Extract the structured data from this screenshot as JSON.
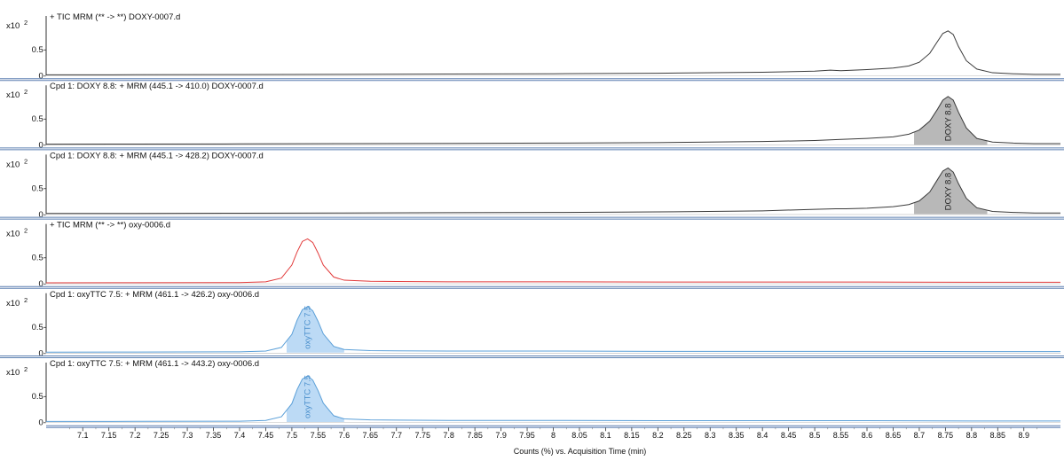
{
  "x_axis": {
    "label": "Counts (%) vs. Acquisition Time (min)",
    "min": 7.03,
    "max": 8.97,
    "ticks": [
      7.1,
      7.15,
      7.2,
      7.25,
      7.3,
      7.35,
      7.4,
      7.45,
      7.5,
      7.55,
      7.6,
      7.65,
      7.7,
      7.75,
      7.8,
      7.85,
      7.9,
      7.95,
      8,
      8.05,
      8.1,
      8.15,
      8.2,
      8.25,
      8.3,
      8.35,
      8.4,
      8.45,
      8.5,
      8.55,
      8.6,
      8.65,
      8.7,
      8.75,
      8.8,
      8.85,
      8.9
    ],
    "tick_labels": [
      "7.1",
      "7.15",
      "7.2",
      "7.25",
      "7.3",
      "7.35",
      "7.4",
      "7.45",
      "7.5",
      "7.55",
      "7.6",
      "7.65",
      "7.7",
      "7.75",
      "7.8",
      "7.85",
      "7.9",
      "7.95",
      "8",
      "8.05",
      "8.1",
      "8.15",
      "8.2",
      "8.25",
      "8.3",
      "8.35",
      "8.4",
      "8.45",
      "8.5",
      "8.55",
      "8.6",
      "8.65",
      "8.7",
      "8.75",
      "8.8",
      "8.85",
      "8.9"
    ]
  },
  "y_axis": {
    "multiplier_prefix": "x10",
    "multiplier_exp": "2",
    "tick_labels": [
      "0.5-",
      "0-"
    ],
    "ylim": [
      0,
      1.05
    ]
  },
  "chart_data": [
    {
      "type": "line",
      "title": "+ TIC MRM (** -> **) DOXY-0007.d",
      "color": "#3a3a3a",
      "fill": false,
      "peak_label": "",
      "x": [
        7.03,
        7.2,
        7.4,
        7.6,
        7.8,
        8.0,
        8.2,
        8.4,
        8.5,
        8.53,
        8.55,
        8.6,
        8.65,
        8.68,
        8.7,
        8.72,
        8.735,
        8.745,
        8.755,
        8.765,
        8.775,
        8.79,
        8.81,
        8.84,
        8.88,
        8.92,
        8.97
      ],
      "y": [
        0.01,
        0.012,
        0.015,
        0.02,
        0.025,
        0.03,
        0.04,
        0.06,
        0.08,
        0.1,
        0.09,
        0.11,
        0.14,
        0.18,
        0.25,
        0.42,
        0.65,
        0.8,
        0.85,
        0.78,
        0.55,
        0.28,
        0.12,
        0.05,
        0.03,
        0.02,
        0.02
      ]
    },
    {
      "type": "area",
      "title": "Cpd 1: DOXY 8.8: + MRM (445.1 -> 410.0) DOXY-0007.d",
      "color": "#3a3a3a",
      "fill": true,
      "fill_color": "#b8b8b8",
      "fill_range": [
        8.69,
        8.83
      ],
      "peak_label": "DOXY 8.8",
      "x": [
        7.03,
        7.2,
        7.4,
        7.6,
        7.8,
        8.0,
        8.2,
        8.4,
        8.5,
        8.55,
        8.6,
        8.65,
        8.68,
        8.7,
        8.72,
        8.735,
        8.745,
        8.755,
        8.765,
        8.775,
        8.79,
        8.81,
        8.84,
        8.88,
        8.92,
        8.97
      ],
      "y": [
        0.01,
        0.012,
        0.015,
        0.02,
        0.025,
        0.03,
        0.04,
        0.06,
        0.08,
        0.1,
        0.12,
        0.15,
        0.2,
        0.28,
        0.45,
        0.68,
        0.85,
        0.92,
        0.85,
        0.62,
        0.32,
        0.12,
        0.05,
        0.03,
        0.02,
        0.02
      ]
    },
    {
      "type": "area",
      "title": "Cpd 1: DOXY 8.8: + MRM (445.1 -> 428.2) DOXY-0007.d",
      "color": "#3a3a3a",
      "fill": true,
      "fill_color": "#b8b8b8",
      "fill_range": [
        8.69,
        8.83
      ],
      "peak_label": "DOXY 8.8",
      "x": [
        7.03,
        7.2,
        7.4,
        7.6,
        7.8,
        8.0,
        8.2,
        8.4,
        8.5,
        8.54,
        8.56,
        8.6,
        8.65,
        8.68,
        8.7,
        8.72,
        8.735,
        8.745,
        8.755,
        8.765,
        8.775,
        8.79,
        8.81,
        8.84,
        8.88,
        8.92,
        8.97
      ],
      "y": [
        0.01,
        0.012,
        0.015,
        0.02,
        0.025,
        0.03,
        0.04,
        0.06,
        0.09,
        0.1,
        0.1,
        0.11,
        0.14,
        0.18,
        0.25,
        0.42,
        0.66,
        0.82,
        0.88,
        0.8,
        0.58,
        0.3,
        0.12,
        0.05,
        0.03,
        0.02,
        0.02
      ]
    },
    {
      "type": "line",
      "title": "+ TIC MRM (** -> **) oxy-0006.d",
      "color": "#e23b3b",
      "fill": false,
      "peak_label": "",
      "x": [
        7.03,
        7.2,
        7.4,
        7.45,
        7.48,
        7.5,
        7.51,
        7.52,
        7.53,
        7.54,
        7.55,
        7.56,
        7.58,
        7.6,
        7.65,
        7.7,
        7.8,
        8.0,
        8.2,
        8.4,
        8.6,
        8.8,
        8.97
      ],
      "y": [
        0.01,
        0.012,
        0.015,
        0.03,
        0.1,
        0.35,
        0.6,
        0.8,
        0.85,
        0.78,
        0.58,
        0.35,
        0.12,
        0.06,
        0.04,
        0.035,
        0.03,
        0.03,
        0.025,
        0.025,
        0.025,
        0.02,
        0.02
      ]
    },
    {
      "type": "area",
      "title": "Cpd 1: oxyTTC 7.5: + MRM (461.1 -> 426.2) oxy-0006.d",
      "color": "#5a9fd8",
      "fill": true,
      "fill_color": "#bcdaf5",
      "fill_range": [
        7.49,
        7.6
      ],
      "peak_label": "oxyTTC 7.5",
      "x": [
        7.03,
        7.2,
        7.4,
        7.45,
        7.48,
        7.5,
        7.51,
        7.52,
        7.53,
        7.54,
        7.55,
        7.56,
        7.58,
        7.6,
        7.65,
        7.7,
        7.8,
        8.0,
        8.2,
        8.4,
        8.6,
        8.8,
        8.97
      ],
      "y": [
        0.01,
        0.012,
        0.015,
        0.03,
        0.1,
        0.35,
        0.62,
        0.82,
        0.88,
        0.8,
        0.6,
        0.36,
        0.12,
        0.06,
        0.04,
        0.035,
        0.03,
        0.03,
        0.025,
        0.025,
        0.025,
        0.02,
        0.02
      ]
    },
    {
      "type": "area",
      "title": "Cpd 1: oxyTTC 7.5: + MRM (461.1 -> 443.2) oxy-0006.d",
      "color": "#5a9fd8",
      "fill": true,
      "fill_color": "#bcdaf5",
      "fill_range": [
        7.49,
        7.6
      ],
      "peak_label": "oxyTTC 7.5",
      "x": [
        7.03,
        7.2,
        7.4,
        7.45,
        7.48,
        7.5,
        7.51,
        7.52,
        7.53,
        7.54,
        7.55,
        7.56,
        7.58,
        7.6,
        7.65,
        7.7,
        7.8,
        8.0,
        8.2,
        8.4,
        8.6,
        8.8,
        8.97
      ],
      "y": [
        0.01,
        0.012,
        0.015,
        0.03,
        0.1,
        0.35,
        0.62,
        0.82,
        0.88,
        0.8,
        0.6,
        0.36,
        0.12,
        0.06,
        0.04,
        0.035,
        0.03,
        0.03,
        0.025,
        0.025,
        0.025,
        0.02,
        0.02
      ]
    }
  ]
}
